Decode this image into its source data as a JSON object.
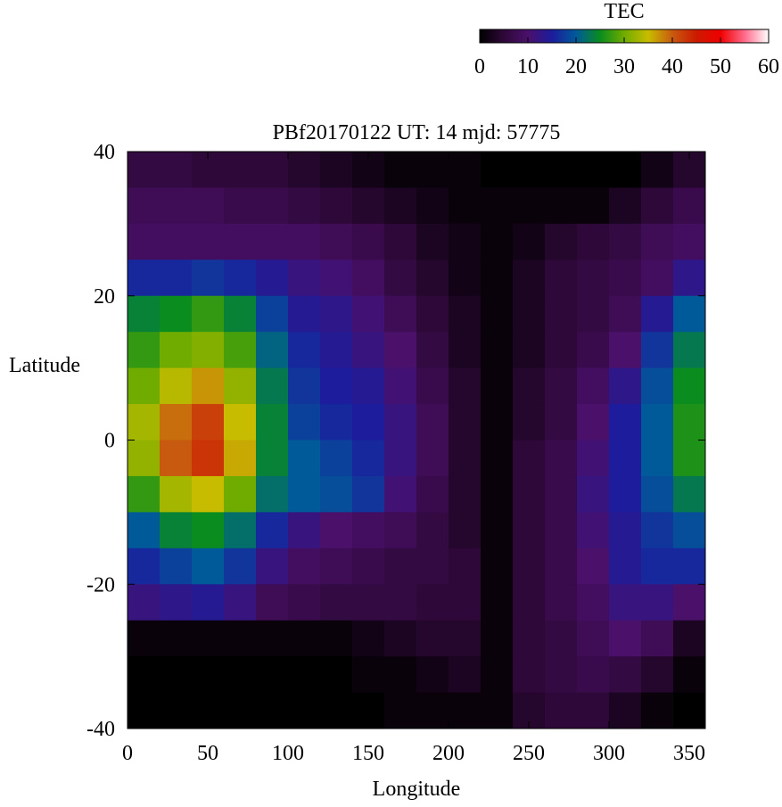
{
  "chart_data": {
    "type": "heatmap",
    "title": "PBf20170122  UT: 14  mjd: 57775",
    "x_label": "Longitude",
    "y_label": "Latitude",
    "colorbar_label": "TEC",
    "x": [
      10,
      30,
      50,
      70,
      90,
      110,
      130,
      150,
      170,
      190,
      210,
      230,
      250,
      270,
      290,
      310,
      330,
      350
    ],
    "y": [
      37.5,
      32.5,
      27.5,
      22.5,
      17.5,
      12.5,
      7.5,
      2.5,
      -2.5,
      -7.5,
      -12.5,
      -17.5,
      -22.5,
      -27.5,
      -32.5,
      -37.5
    ],
    "values": [
      [
        6,
        6,
        5,
        5,
        5,
        4,
        3,
        2,
        1,
        1,
        1,
        0,
        0,
        0,
        0,
        0,
        2,
        4
      ],
      [
        8,
        8,
        8,
        7,
        7,
        6,
        5,
        4,
        3,
        2,
        1,
        1,
        1,
        1,
        1,
        3,
        5,
        7
      ],
      [
        9,
        9,
        9,
        9,
        9,
        9,
        8,
        7,
        5,
        3,
        2,
        1,
        2,
        4,
        5,
        6,
        8,
        9
      ],
      [
        16,
        16,
        17,
        16,
        14,
        12,
        11,
        9,
        6,
        4,
        2,
        1,
        3,
        5,
        6,
        7,
        9,
        13
      ],
      [
        24,
        25,
        27,
        24,
        18,
        14,
        13,
        11,
        8,
        5,
        3,
        1,
        3,
        5,
        6,
        8,
        14,
        20
      ],
      [
        27,
        30,
        31,
        28,
        21,
        16,
        14,
        12,
        10,
        6,
        3,
        1,
        3,
        5,
        7,
        10,
        17,
        23
      ],
      [
        30,
        34,
        37,
        32,
        23,
        17,
        15,
        14,
        11,
        7,
        4,
        1,
        4,
        6,
        9,
        13,
        19,
        25
      ],
      [
        33,
        39,
        42,
        35,
        24,
        18,
        16,
        15,
        12,
        8,
        4,
        1,
        4,
        6,
        10,
        15,
        20,
        26
      ],
      [
        32,
        40,
        43,
        36,
        24,
        20,
        18,
        16,
        12,
        8,
        4,
        1,
        5,
        7,
        11,
        15,
        20,
        26
      ],
      [
        27,
        33,
        35,
        30,
        22,
        20,
        19,
        17,
        11,
        7,
        4,
        1,
        5,
        7,
        12,
        15,
        19,
        23
      ],
      [
        20,
        24,
        25,
        22,
        16,
        12,
        10,
        9,
        8,
        6,
        4,
        1,
        5,
        7,
        11,
        14,
        17,
        19
      ],
      [
        16,
        18,
        20,
        17,
        12,
        9,
        8,
        7,
        6,
        6,
        5,
        1,
        5,
        7,
        10,
        14,
        16,
        16
      ],
      [
        12,
        13,
        14,
        12,
        8,
        7,
        6,
        6,
        6,
        5,
        5,
        1,
        5,
        7,
        9,
        12,
        12,
        10
      ],
      [
        1,
        1,
        1,
        1,
        1,
        1,
        1,
        2,
        3,
        4,
        4,
        1,
        5,
        6,
        8,
        10,
        8,
        3
      ],
      [
        0,
        0,
        0,
        0,
        0,
        0,
        0,
        1,
        1,
        2,
        3,
        1,
        5,
        6,
        7,
        6,
        4,
        1
      ],
      [
        0,
        0,
        0,
        0,
        0,
        0,
        0,
        0,
        1,
        1,
        1,
        1,
        4,
        5,
        5,
        3,
        1,
        0
      ]
    ],
    "xlim": [
      0,
      360
    ],
    "xticks": [
      0,
      50,
      100,
      150,
      200,
      250,
      300,
      350
    ],
    "ylim": [
      -40,
      40
    ],
    "yticks": [
      -40,
      -20,
      0,
      20,
      40
    ],
    "zlim": [
      0,
      60
    ],
    "zticks": [
      0,
      10,
      20,
      30,
      40,
      50,
      60
    ],
    "colors": [
      "#000000",
      "#2e0838",
      "#4a106a",
      "#1c1c9c",
      "#005a9a",
      "#0a8c1e",
      "#70ac00",
      "#c8bc00",
      "#c85a10",
      "#cc1a00",
      "#f00000",
      "#ff6a8a",
      "#ffffff"
    ]
  }
}
